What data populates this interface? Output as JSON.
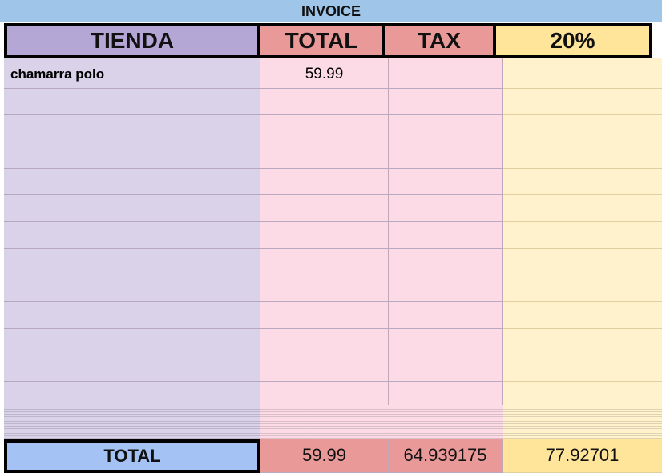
{
  "title": "INVOICE",
  "headers": [
    "TIENDA",
    "TOTAL",
    "TAX",
    "20%"
  ],
  "rows": [
    [
      "chamarra polo",
      "59.99",
      "",
      ""
    ],
    [
      "",
      "",
      "",
      ""
    ],
    [
      "",
      "",
      "",
      ""
    ],
    [
      "",
      "",
      "",
      ""
    ],
    [
      "",
      "",
      "",
      ""
    ],
    [
      "",
      "",
      "",
      ""
    ],
    [
      "",
      "",
      "",
      ""
    ],
    [
      "",
      "",
      "",
      ""
    ],
    [
      "",
      "",
      "",
      ""
    ],
    [
      "",
      "",
      "",
      ""
    ],
    [
      "",
      "",
      "",
      ""
    ],
    [
      "",
      "",
      "",
      ""
    ],
    [
      "",
      "",
      "",
      ""
    ]
  ],
  "totals": [
    "TOTAL",
    "59.99",
    "64.939175",
    "77.92701"
  ]
}
